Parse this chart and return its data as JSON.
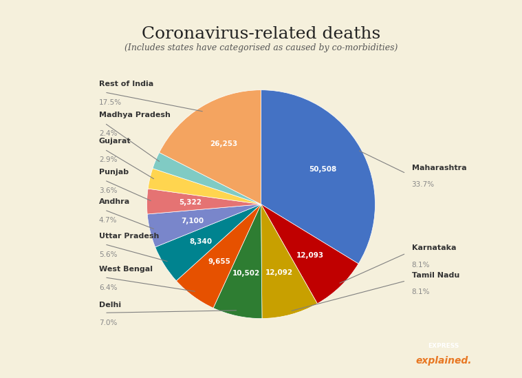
{
  "title": "Coronavirus-related deaths",
  "subtitle": "(Includes states have categorised as caused by co-morbidities)",
  "background_color": "#f5f0dc",
  "labels": [
    "Maharashtra",
    "Karnataka",
    "Tamil Nadu",
    "Delhi",
    "West Bengal",
    "Uttar Pradesh",
    "Andhra",
    "Punjab",
    "Gujarat",
    "Madhya Pradesh",
    "Rest of India",
    "12,092",
    "10,502",
    "9,655",
    "8,340",
    "7,100",
    "5,322",
    "26,253"
  ],
  "slices": [
    {
      "label": "Maharashtra",
      "value": 50508,
      "pct": "33.7%",
      "color": "#4472c4",
      "text_value": "50,508"
    },
    {
      "label": "Karnataka",
      "value": 12093,
      "pct": "8.1%",
      "color": "#c00000",
      "text_value": "12,093"
    },
    {
      "label": "Tamil Nadu",
      "value": 12092,
      "pct": "8.1%",
      "color": "#c8a000",
      "text_value": "12,092"
    },
    {
      "label": "Delhi",
      "value": 10502,
      "pct": "7.0%",
      "color": "#2e7d32",
      "text_value": "10,502"
    },
    {
      "label": "West Bengal",
      "value": 9655,
      "pct": "6.4%",
      "color": "#e65100",
      "text_value": "9,655"
    },
    {
      "label": "Uttar Pradesh",
      "value": 8340,
      "pct": "5.6%",
      "color": "#00838f",
      "text_value": "8,340"
    },
    {
      "label": "Andhra",
      "value": 7100,
      "pct": "4.7%",
      "color": "#7986cb",
      "text_value": "7,100"
    },
    {
      "label": "Punjab",
      "value": 5322,
      "pct": "3.6%",
      "color": "#e57373",
      "text_value": "5,322"
    },
    {
      "label": "Gujarat",
      "value": 4348,
      "pct": "2.9%",
      "color": "#ffd54f",
      "text_value": ""
    },
    {
      "label": "Madhya Pradesh",
      "value": 3597,
      "pct": "2.4%",
      "color": "#80cbc4",
      "text_value": ""
    },
    {
      "label": "Rest of India",
      "value": 26253,
      "pct": "17.5%",
      "color": "#f4a460",
      "text_value": "26,253"
    }
  ]
}
